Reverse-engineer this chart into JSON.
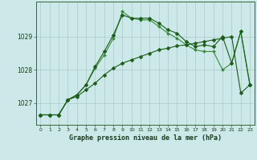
{
  "xlabel": "Graphe pression niveau de la mer (hPa)",
  "hours": [
    0,
    1,
    2,
    3,
    4,
    5,
    6,
    7,
    8,
    9,
    10,
    11,
    12,
    13,
    14,
    15,
    16,
    17,
    18,
    19,
    20,
    21,
    22,
    23
  ],
  "line_high": [
    1026.65,
    1026.65,
    1026.65,
    1027.1,
    1027.25,
    1027.55,
    1028.1,
    1028.55,
    1029.05,
    1029.65,
    1029.55,
    1029.55,
    1029.55,
    1029.4,
    1029.2,
    1029.1,
    1028.85,
    1028.7,
    1028.75,
    1028.7,
    1029.0,
    1028.2,
    1029.15,
    1027.55
  ],
  "line_mid": [
    1026.65,
    1026.65,
    1026.65,
    1027.1,
    1027.25,
    1027.55,
    1028.05,
    1028.45,
    1028.95,
    1029.75,
    1029.55,
    1029.5,
    1029.5,
    1029.3,
    1029.1,
    1028.95,
    1028.75,
    1028.6,
    1028.55,
    1028.55,
    1028.0,
    1028.2,
    1029.15,
    1027.55
  ],
  "line_low": [
    1026.65,
    1026.65,
    1026.65,
    1027.1,
    1027.2,
    1027.4,
    1027.6,
    1027.85,
    1028.05,
    1028.2,
    1028.3,
    1028.4,
    1028.5,
    1028.6,
    1028.65,
    1028.72,
    1028.75,
    1028.8,
    1028.85,
    1028.9,
    1028.95,
    1029.0,
    1027.3,
    1027.55
  ],
  "bg_color": "#cce8e8",
  "line_color_dark": "#1a5c1a",
  "line_color_light": "#3a8a3a",
  "grid_color": "#aacccc",
  "ylim_min": 1026.35,
  "ylim_max": 1030.05,
  "ytick_vals": [
    1027,
    1028,
    1029
  ],
  "ytick_top": 1029,
  "line_width": 0.8,
  "marker_size": 2.5
}
